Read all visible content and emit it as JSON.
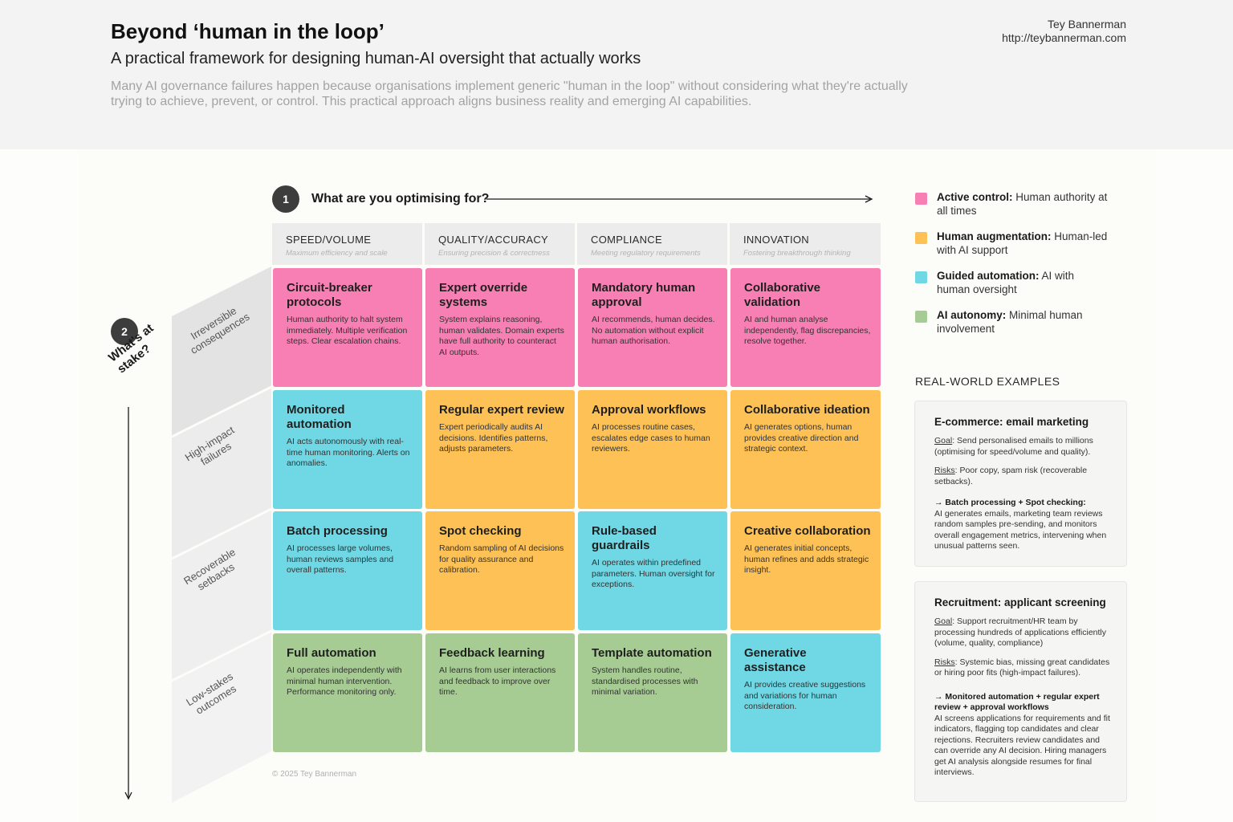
{
  "header": {
    "title": "Beyond ‘human in the loop’",
    "subtitle": "A practical framework for designing human-AI oversight that actually works",
    "intro": "Many AI governance failures happen because organisations implement generic \"human in the loop\" without considering what they're actually trying to achieve, prevent, or control. This practical approach aligns business reality and emerging AI capabilities.",
    "author_name": "Tey Bannerman",
    "author_url": "http://teybannerman.com"
  },
  "axis_x": {
    "badge": "1",
    "label": "What are you optimising for?"
  },
  "axis_y": {
    "badge": "2",
    "label": "What's at stake?"
  },
  "columns": [
    {
      "heading": "SPEED/VOLUME",
      "sub": "Maximum efficiency and scale"
    },
    {
      "heading": "QUALITY/ACCURACY",
      "sub": "Ensuring precision & correctness"
    },
    {
      "heading": "COMPLIANCE",
      "sub": "Meeting regulatory requirements"
    },
    {
      "heading": "INNOVATION",
      "sub": "Fostering breakthrough thinking"
    }
  ],
  "rows": [
    {
      "label": "Irreversible consequences"
    },
    {
      "label": "High-impact failures"
    },
    {
      "label": "Recoverable setbacks"
    },
    {
      "label": "Low-stakes outcomes"
    }
  ],
  "cells": [
    [
      {
        "title": "Circuit-breaker protocols",
        "desc": "Human authority to halt system immediately. Multiple verification steps. Clear escalation chains.",
        "color": "#f77fb3"
      },
      {
        "title": "Expert override systems",
        "desc": "System explains reasoning, human validates. Domain experts have full authority to counteract AI outputs.",
        "color": "#f77fb3"
      },
      {
        "title": "Mandatory human approval",
        "desc": "AI recommends, human decides. No automation without explicit human authorisation.",
        "color": "#f77fb3"
      },
      {
        "title": "Collaborative validation",
        "desc": "AI and human analyse independently, flag discrepancies, resolve together.",
        "color": "#f77fb3"
      }
    ],
    [
      {
        "title": "Monitored automation",
        "desc": "AI acts autonomously with real-time human monitoring. Alerts on anomalies.",
        "color": "#70d7e4"
      },
      {
        "title": "Regular expert review",
        "desc": "Expert periodically audits AI decisions. Identifies patterns, adjusts parameters.",
        "color": "#fdc155"
      },
      {
        "title": "Approval workflows",
        "desc": "AI processes routine cases, escalates edge cases to human reviewers.",
        "color": "#fdc155"
      },
      {
        "title": "Collaborative ideation",
        "desc": "AI generates options, human provides creative direction and strategic context.",
        "color": "#fdc155"
      }
    ],
    [
      {
        "title": "Batch processing",
        "desc": "AI processes large volumes, human reviews samples and overall patterns.",
        "color": "#70d7e4"
      },
      {
        "title": "Spot checking",
        "desc": "Random sampling of AI decisions for quality assurance and calibration.",
        "color": "#fdc155"
      },
      {
        "title": "Rule-based guardrails",
        "desc": "AI operates within predefined parameters. Human oversight for exceptions.",
        "color": "#70d7e4"
      },
      {
        "title": "Creative collaboration",
        "desc": "AI generates initial concepts, human refines and adds strategic insight.",
        "color": "#fdc155"
      }
    ],
    [
      {
        "title": "Full automation",
        "desc": "AI operates independently with minimal human intervention. Performance monitoring only.",
        "color": "#a6cc93"
      },
      {
        "title": "Feedback learning",
        "desc": "AI learns from user interactions and feedback to improve over time.",
        "color": "#a6cc93"
      },
      {
        "title": "Template automation",
        "desc": "System handles routine, standardised processes with minimal variation.",
        "color": "#a6cc93"
      },
      {
        "title": "Generative assistance",
        "desc": "AI provides creative suggestions and variations for human consideration.",
        "color": "#70d7e4"
      }
    ]
  ],
  "legend": [
    {
      "term": "Active control:",
      "text": " Human authority at all times",
      "color": "#f77fb3"
    },
    {
      "term": "Human augmentation:",
      "text": " Human-led with AI support",
      "color": "#fdc155"
    },
    {
      "term": "Guided automation:",
      "text": " AI with human oversight",
      "color": "#70d7e4"
    },
    {
      "term": "AI autonomy:",
      "text": " Minimal human involvement",
      "color": "#a6cc93"
    }
  ],
  "examples": {
    "heading": "REAL-WORLD EXAMPLES",
    "items": [
      {
        "title": "E-commerce: email marketing",
        "goal_label": "Goal",
        "goal_text": ": Send personalised emails to millions (optimising for speed/volume and quality).",
        "risks_label": "Risks",
        "risks_text": ": Poor copy, spam risk (recoverable setbacks).",
        "approach": "→ Batch processing + Spot checking:",
        "approach_text": "AI generates emails, marketing team reviews random samples pre-sending, and monitors overall engagement metrics, intervening when unusual patterns seen."
      },
      {
        "title": "Recruitment: applicant screening",
        "goal_label": "Goal",
        "goal_text": ": Support recruitment/HR team by processing hundreds of applications efficiently (volume, quality, compliance)",
        "risks_label": "Risks",
        "risks_text": ": Systemic bias, missing great candidates or hiring poor fits (high-impact failures).",
        "approach": "→ Monitored automation + regular expert review + approval workflows",
        "approach_text": "AI screens applications for requirements and fit indicators, flagging top candidates and clear rejections. Recruiters review candidates and can override any AI decision. Hiring managers get AI analysis alongside resumes for final interviews."
      }
    ]
  },
  "copyright": "© 2025 Tey Bannerman"
}
